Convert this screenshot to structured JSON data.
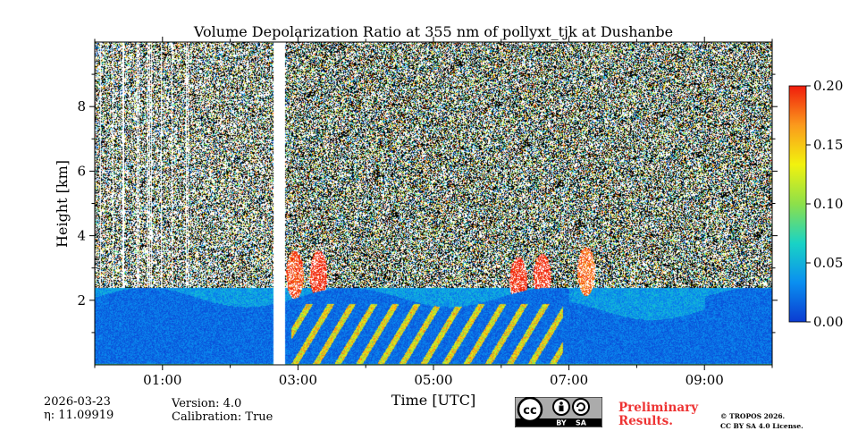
{
  "chart_data": {
    "type": "heatmap",
    "title": "Volume Depolarization Ratio at 355 nm of pollyxt_tjk at Dushanbe",
    "xlabel": "Time [UTC]",
    "ylabel": "Height [km]",
    "xlim_hours": [
      0.0,
      10.0
    ],
    "ylim_km": [
      0.0,
      10.0
    ],
    "x_ticks": [
      {
        "hours": 1.0,
        "label": "01:00"
      },
      {
        "hours": 3.0,
        "label": "03:00"
      },
      {
        "hours": 5.0,
        "label": "05:00"
      },
      {
        "hours": 7.0,
        "label": "07:00"
      },
      {
        "hours": 9.0,
        "label": "09:00"
      }
    ],
    "x_minor_hours": [
      0,
      2,
      4,
      6,
      8,
      10
    ],
    "y_ticks": [
      {
        "km": 2,
        "label": "2"
      },
      {
        "km": 4,
        "label": "4"
      },
      {
        "km": 6,
        "label": "6"
      },
      {
        "km": 8,
        "label": "8"
      }
    ],
    "colorbar": {
      "range": [
        0.0,
        0.2
      ],
      "ticks": [
        {
          "value": 0.0,
          "label": "0.00"
        },
        {
          "value": 0.05,
          "label": "0.05"
        },
        {
          "value": 0.1,
          "label": "0.10"
        },
        {
          "value": 0.15,
          "label": "0.15"
        },
        {
          "value": 0.2,
          "label": "0.20"
        }
      ],
      "colormap": [
        "#0b3bd1",
        "#0a8ff0",
        "#19d3c5",
        "#8de04a",
        "#f2f20e",
        "#fb9a1c",
        "#f01c0c"
      ]
    },
    "data_gap_hours": [
      2.63,
      2.8
    ],
    "regions": {
      "boundary_layer_top_km": 2.1,
      "noise_start_km": 2.4,
      "boundary_layer_value": 0.02,
      "dust_plumes": [
        {
          "t": 2.95,
          "z": 2.8,
          "value": 0.19
        },
        {
          "t": 3.3,
          "z": 2.8,
          "value": 0.2
        },
        {
          "t": 6.25,
          "z": 2.6,
          "value": 0.2
        },
        {
          "t": 6.6,
          "z": 2.7,
          "value": 0.2
        },
        {
          "t": 7.25,
          "z": 2.9,
          "value": 0.18
        }
      ]
    }
  },
  "meta": {
    "date": "2026-03-23",
    "eta_label": "η: 11.09919",
    "version": "Version: 4.0",
    "calibration": "Calibration: True"
  },
  "branding": {
    "preliminary_line1": "Preliminary",
    "preliminary_line2": "Results.",
    "preliminary_color": "#ee3333",
    "license_line1": "© TROPOS 2026.",
    "license_line2": "CC BY SA 4.0 License.",
    "cc_text": "cc",
    "by_text": "BY",
    "sa_text": "SA"
  }
}
